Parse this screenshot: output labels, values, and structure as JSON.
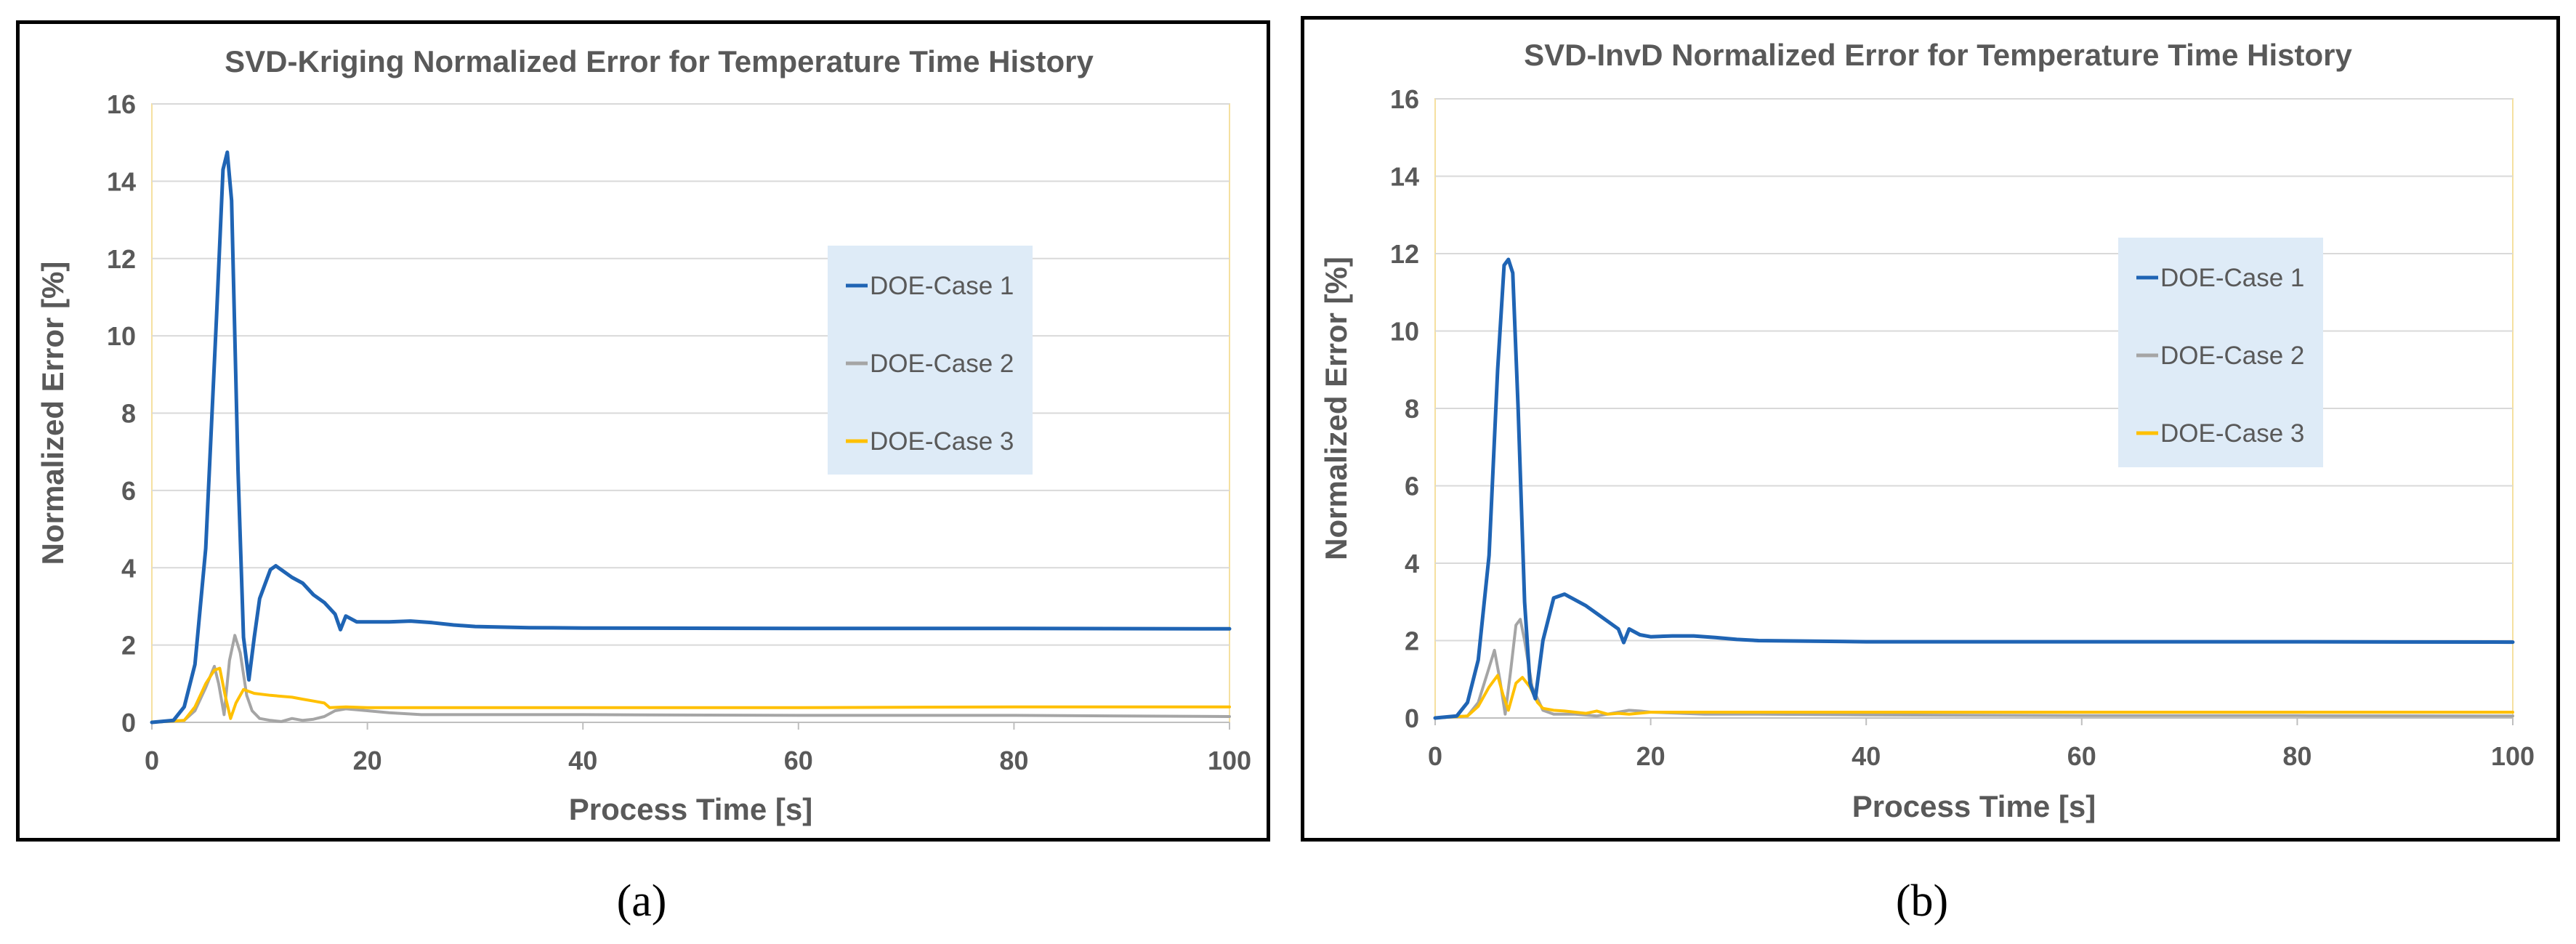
{
  "chart_data": [
    {
      "type": "line",
      "panel_label": "(a)",
      "title": "SVD-Kriging Normalized Error for Temperature Time History",
      "xlabel": "Process Time [s]",
      "ylabel": "Normalized Error [%]",
      "xlim": [
        0,
        100
      ],
      "ylim": [
        0,
        16
      ],
      "xticks": [
        0,
        20,
        40,
        60,
        80,
        100
      ],
      "yticks": [
        0,
        2,
        4,
        6,
        8,
        10,
        12,
        14,
        16
      ],
      "grid": true,
      "legend": "right-center",
      "series": [
        {
          "name": "DOE-Case 1",
          "color": "#1f64b4",
          "points": [
            [
              0,
              0
            ],
            [
              2,
              0.05
            ],
            [
              3,
              0.4
            ],
            [
              4,
              1.5
            ],
            [
              5,
              4.5
            ],
            [
              6,
              10.5
            ],
            [
              6.6,
              14.3
            ],
            [
              7,
              14.75
            ],
            [
              7.4,
              13.5
            ],
            [
              8,
              6.5
            ],
            [
              8.5,
              2.2
            ],
            [
              9,
              1.1
            ],
            [
              9.5,
              2.2
            ],
            [
              10,
              3.2
            ],
            [
              11,
              3.95
            ],
            [
              11.5,
              4.05
            ],
            [
              12,
              3.95
            ],
            [
              13,
              3.75
            ],
            [
              14,
              3.6
            ],
            [
              15,
              3.3
            ],
            [
              16,
              3.1
            ],
            [
              17,
              2.8
            ],
            [
              17.5,
              2.4
            ],
            [
              18,
              2.75
            ],
            [
              19,
              2.6
            ],
            [
              20,
              2.6
            ],
            [
              22,
              2.6
            ],
            [
              24,
              2.62
            ],
            [
              26,
              2.58
            ],
            [
              28,
              2.52
            ],
            [
              30,
              2.48
            ],
            [
              35,
              2.45
            ],
            [
              40,
              2.44
            ],
            [
              60,
              2.43
            ],
            [
              80,
              2.43
            ],
            [
              100,
              2.42
            ]
          ]
        },
        {
          "name": "DOE-Case 2",
          "color": "#a5a5a5",
          "points": [
            [
              0,
              0
            ],
            [
              3,
              0.05
            ],
            [
              4,
              0.3
            ],
            [
              5,
              0.9
            ],
            [
              5.8,
              1.45
            ],
            [
              6.2,
              1.0
            ],
            [
              6.7,
              0.2
            ],
            [
              7.2,
              1.6
            ],
            [
              7.7,
              2.25
            ],
            [
              8.2,
              1.8
            ],
            [
              8.8,
              0.7
            ],
            [
              9.3,
              0.3
            ],
            [
              10,
              0.1
            ],
            [
              11,
              0.05
            ],
            [
              12,
              0.02
            ],
            [
              13,
              0.1
            ],
            [
              14,
              0.05
            ],
            [
              15,
              0.08
            ],
            [
              16,
              0.15
            ],
            [
              17,
              0.3
            ],
            [
              18,
              0.35
            ],
            [
              20,
              0.3
            ],
            [
              22,
              0.25
            ],
            [
              25,
              0.2
            ],
            [
              30,
              0.2
            ],
            [
              40,
              0.2
            ],
            [
              60,
              0.18
            ],
            [
              80,
              0.18
            ],
            [
              100,
              0.15
            ]
          ]
        },
        {
          "name": "DOE-Case 3",
          "color": "#ffc000",
          "points": [
            [
              0,
              0
            ],
            [
              3,
              0.05
            ],
            [
              4,
              0.4
            ],
            [
              5,
              1.0
            ],
            [
              5.8,
              1.35
            ],
            [
              6.3,
              1.4
            ],
            [
              6.8,
              0.7
            ],
            [
              7.3,
              0.1
            ],
            [
              7.8,
              0.5
            ],
            [
              8.5,
              0.85
            ],
            [
              9.5,
              0.75
            ],
            [
              11,
              0.7
            ],
            [
              13,
              0.65
            ],
            [
              14,
              0.6
            ],
            [
              15,
              0.55
            ],
            [
              16,
              0.5
            ],
            [
              16.5,
              0.38
            ],
            [
              18,
              0.4
            ],
            [
              20,
              0.38
            ],
            [
              30,
              0.38
            ],
            [
              40,
              0.38
            ],
            [
              60,
              0.38
            ],
            [
              80,
              0.4
            ],
            [
              100,
              0.4
            ]
          ]
        }
      ]
    },
    {
      "type": "line",
      "panel_label": "(b)",
      "title": "SVD-InvD Normalized Error for Temperature Time History",
      "xlabel": "Process Time [s]",
      "ylabel": "Normalized Error [%]",
      "xlim": [
        0,
        100
      ],
      "ylim": [
        0,
        16
      ],
      "xticks": [
        0,
        20,
        40,
        60,
        80,
        100
      ],
      "yticks": [
        0,
        2,
        4,
        6,
        8,
        10,
        12,
        14,
        16
      ],
      "grid": true,
      "legend": "right-center",
      "series": [
        {
          "name": "DOE-Case 1",
          "color": "#1f64b4",
          "points": [
            [
              0,
              0
            ],
            [
              2,
              0.05
            ],
            [
              3,
              0.4
            ],
            [
              4,
              1.5
            ],
            [
              5,
              4.2
            ],
            [
              5.8,
              9
            ],
            [
              6.4,
              11.7
            ],
            [
              6.8,
              11.85
            ],
            [
              7.2,
              11.5
            ],
            [
              7.7,
              8
            ],
            [
              8.3,
              3
            ],
            [
              8.8,
              0.9
            ],
            [
              9.3,
              0.5
            ],
            [
              10,
              2.0
            ],
            [
              11,
              3.1
            ],
            [
              12,
              3.2
            ],
            [
              13,
              3.05
            ],
            [
              14,
              2.9
            ],
            [
              15,
              2.7
            ],
            [
              16,
              2.5
            ],
            [
              17,
              2.3
            ],
            [
              17.5,
              1.95
            ],
            [
              18,
              2.3
            ],
            [
              19,
              2.15
            ],
            [
              20,
              2.1
            ],
            [
              22,
              2.12
            ],
            [
              24,
              2.12
            ],
            [
              26,
              2.08
            ],
            [
              28,
              2.03
            ],
            [
              30,
              2.0
            ],
            [
              40,
              1.97
            ],
            [
              60,
              1.97
            ],
            [
              80,
              1.97
            ],
            [
              100,
              1.96
            ]
          ]
        },
        {
          "name": "DOE-Case 2",
          "color": "#a5a5a5",
          "points": [
            [
              0,
              0
            ],
            [
              3,
              0.05
            ],
            [
              4,
              0.4
            ],
            [
              5,
              1.3
            ],
            [
              5.5,
              1.75
            ],
            [
              6,
              1.0
            ],
            [
              6.5,
              0.1
            ],
            [
              7,
              1.2
            ],
            [
              7.5,
              2.4
            ],
            [
              7.9,
              2.55
            ],
            [
              8.3,
              2.0
            ],
            [
              9,
              0.8
            ],
            [
              10,
              0.2
            ],
            [
              11,
              0.1
            ],
            [
              13,
              0.1
            ],
            [
              15,
              0.05
            ],
            [
              16,
              0.1
            ],
            [
              17,
              0.15
            ],
            [
              18,
              0.2
            ],
            [
              19,
              0.18
            ],
            [
              20,
              0.15
            ],
            [
              25,
              0.1
            ],
            [
              30,
              0.1
            ],
            [
              40,
              0.08
            ],
            [
              60,
              0.06
            ],
            [
              80,
              0.06
            ],
            [
              100,
              0.05
            ]
          ]
        },
        {
          "name": "DOE-Case 3",
          "color": "#ffc000",
          "points": [
            [
              0,
              0
            ],
            [
              3,
              0.05
            ],
            [
              4,
              0.3
            ],
            [
              5,
              0.8
            ],
            [
              5.8,
              1.1
            ],
            [
              6.3,
              0.6
            ],
            [
              6.8,
              0.2
            ],
            [
              7.5,
              0.9
            ],
            [
              8.1,
              1.05
            ],
            [
              8.8,
              0.8
            ],
            [
              9.5,
              0.4
            ],
            [
              10,
              0.25
            ],
            [
              11,
              0.2
            ],
            [
              12,
              0.18
            ],
            [
              14,
              0.12
            ],
            [
              15,
              0.18
            ],
            [
              16,
              0.1
            ],
            [
              17,
              0.12
            ],
            [
              18,
              0.1
            ],
            [
              20,
              0.15
            ],
            [
              25,
              0.15
            ],
            [
              30,
              0.15
            ],
            [
              40,
              0.15
            ],
            [
              60,
              0.15
            ],
            [
              80,
              0.15
            ],
            [
              100,
              0.15
            ]
          ]
        }
      ]
    }
  ]
}
